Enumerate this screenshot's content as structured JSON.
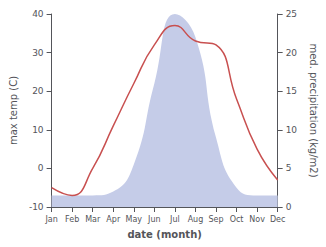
{
  "chart_data": {
    "type": "line",
    "categories": [
      "Jan",
      "Feb",
      "Mar",
      "Apr",
      "May",
      "Jun",
      "Jul",
      "Aug",
      "Sep",
      "Oct",
      "Nov",
      "Dec"
    ],
    "series": [
      {
        "type": "line",
        "color": "#c85050",
        "axis": "y",
        "values": [
          -5,
          -7,
          0,
          11,
          22,
          32,
          37,
          33,
          32,
          18,
          5,
          -3
        ]
      },
      {
        "type": "area",
        "color": "#c5cce8",
        "axis": "y2",
        "values": [
          1.5,
          1.5,
          1.5,
          2.0,
          5.5,
          16,
          25,
          22,
          9,
          2.5,
          1.5,
          1.5
        ]
      }
    ],
    "xlabel": "date (month)",
    "ylabel": "max temp (C)",
    "y2label": "med. precipitation (kg/m2)",
    "ylim": [
      -10,
      40
    ],
    "yticks": [
      -10,
      0,
      10,
      20,
      30,
      40
    ],
    "y2lim": [
      0,
      25
    ],
    "y2ticks": [
      0,
      5,
      10,
      15,
      20,
      25
    ],
    "grid": false
  }
}
